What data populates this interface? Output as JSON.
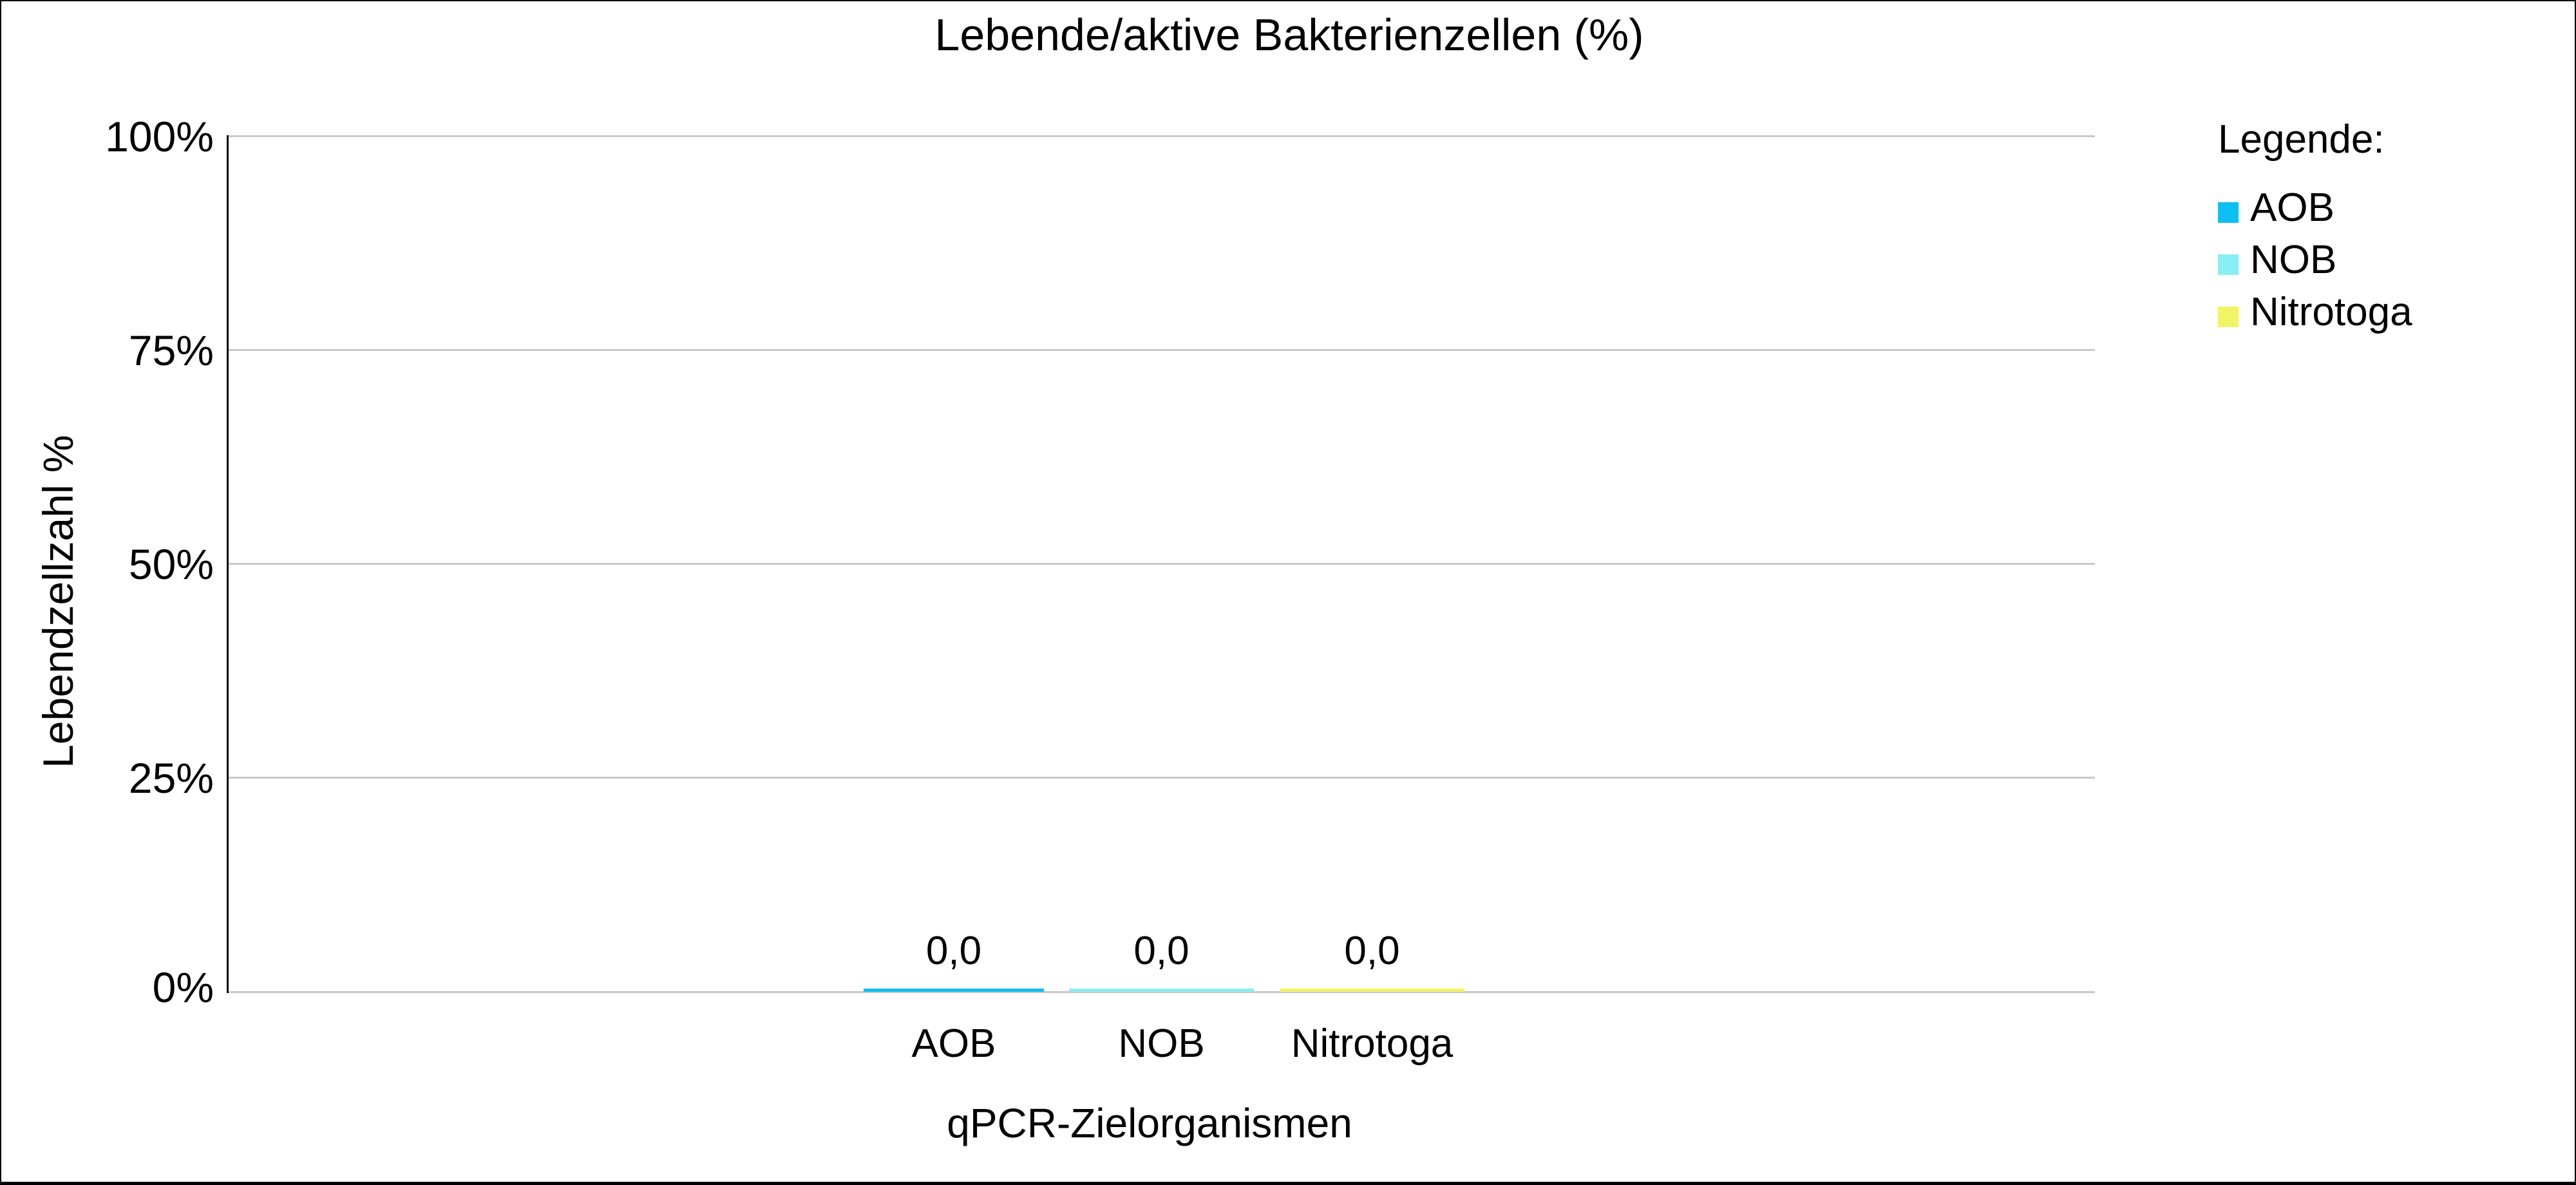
{
  "chart_data": {
    "type": "bar",
    "title": "Lebende/aktive Bakterienzellen (%)",
    "xlabel": "qPCR-Zielorganismen",
    "ylabel": "Lebendzellzahl %",
    "categories": [
      "AOB",
      "NOB",
      "Nitrotoga"
    ],
    "values": [
      0.0,
      0.0,
      0.0
    ],
    "value_labels": [
      "0,0",
      "0,0",
      "0,0"
    ],
    "ylim": [
      0,
      100
    ],
    "ytick_labels_top_to_bottom": [
      "100%",
      "75%",
      "50%",
      "25%",
      "0%"
    ],
    "grid": "horizontal-only",
    "gridline_color": "#c9c9c9",
    "axis_color": "#000000",
    "background_color": "#ffffff",
    "bar_colors": [
      "#0dbef2",
      "#8aeff2",
      "#f1f465"
    ],
    "legend_position": "top-right"
  },
  "legend": {
    "title": "Legende:",
    "items": [
      {
        "label": "AOB",
        "color": "#0dbef2"
      },
      {
        "label": "NOB",
        "color": "#8aeff2"
      },
      {
        "label": "Nitrotoga",
        "color": "#f1f465"
      }
    ]
  }
}
